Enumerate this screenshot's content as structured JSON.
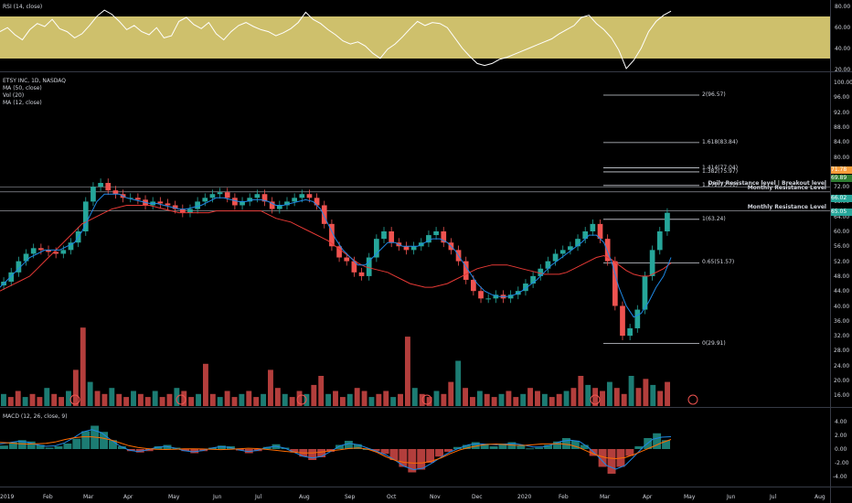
{
  "rsi": {
    "title": "RSI (14, close)",
    "axis_ticks": [
      "80.00",
      "60.00",
      "40.00",
      "20.00"
    ],
    "band_color": "#f2e27f",
    "line_color": "#ffffff"
  },
  "price": {
    "legend": [
      "ETSY INC, 1D, NASDAQ",
      "MA (50, close)",
      "Vol (20)",
      "MA (12, close)"
    ],
    "axis_ticks": [
      "100.00",
      "96.00",
      "92.00",
      "88.00",
      "84.00",
      "80.00",
      "76.00",
      "72.00",
      "68.00",
      "64.00",
      "60.00",
      "56.00",
      "52.00",
      "48.00",
      "44.00",
      "40.00",
      "36.00",
      "32.00",
      "28.00",
      "24.00",
      "20.00",
      "16.00"
    ],
    "fib_levels": [
      {
        "label": "2(96.57)",
        "price": 96.57
      },
      {
        "label": "1.618(83.84)",
        "price": 83.84
      },
      {
        "label": "1.414(77.04)",
        "price": 77.04
      },
      {
        "label": "1.382(75.97)",
        "price": 75.97
      },
      {
        "label": "1.272(72.31)",
        "price": 72.31
      },
      {
        "label": "1(63.24)",
        "price": 63.24
      },
      {
        "label": "0.65(51.57)",
        "price": 51.57
      },
      {
        "label": "0(29.91)",
        "price": 29.91
      }
    ],
    "resistance_lines": [
      {
        "label": "Daily Resistance level | Breakout level",
        "price": 71.9
      },
      {
        "label": "Monthly Resistance Level",
        "price": 70.6
      },
      {
        "label": "Monthly Resistance Level",
        "price": 65.5
      }
    ],
    "price_badges": [
      {
        "text": "71.78",
        "color": "#f89c3a"
      },
      {
        "text": "69.89",
        "color": "#2e7d32"
      },
      {
        "text": "66.02",
        "color": "#26a69a"
      },
      {
        "text": "65.05",
        "color": "#26a69a"
      }
    ],
    "up_color": "#26a69a",
    "down_color": "#ef5350",
    "ma50_color": "#e53935",
    "ma12_color": "#1e88e5"
  },
  "macd": {
    "title": "MACD (12, 26, close, 9)",
    "axis_ticks": [
      "4.00",
      "2.00",
      "0.00",
      "-2.00",
      "-4.00"
    ]
  },
  "time_axis": [
    "2019",
    "Feb",
    "Mar",
    "Apr",
    "May",
    "Jun",
    "Jul",
    "Aug",
    "Sep",
    "Oct",
    "Nov",
    "Dec",
    "2020",
    "Feb",
    "Mar",
    "Apr",
    "May",
    "Jun",
    "Jul",
    "Aug"
  ],
  "chart_data": [
    {
      "type": "line",
      "title": "RSI (14, close)",
      "ylim": [
        17,
        84
      ],
      "series": [
        {
          "values": [
            58,
            62,
            55,
            50,
            60,
            66,
            63,
            70,
            61,
            58,
            52,
            56,
            64,
            73,
            79,
            75,
            68,
            60,
            64,
            58,
            55,
            62,
            52,
            54,
            68,
            72,
            65,
            61,
            67,
            56,
            50,
            58,
            64,
            67,
            63,
            60,
            58,
            54,
            57,
            61,
            67,
            77,
            70,
            66,
            60,
            55,
            49,
            46,
            48,
            44,
            37,
            32,
            41,
            46,
            53,
            61,
            68,
            64,
            67,
            66,
            62,
            52,
            42,
            34,
            27,
            25,
            27,
            31,
            33,
            36,
            39,
            42,
            45,
            48,
            51,
            56,
            60,
            64,
            72,
            74,
            66,
            60,
            52,
            40,
            22,
            30,
            42,
            58,
            68,
            74,
            78
          ]
        }
      ]
    },
    {
      "type": "line",
      "title": "ETSY INC, 1D, NASDAQ",
      "ylim": [
        14,
        101
      ],
      "series": [
        {
          "name": "ETSY INC, 1D, NASDAQ",
          "values": [
            46.5,
            49,
            52,
            54,
            55.5,
            55,
            54.5,
            54,
            55,
            57,
            60,
            68,
            72,
            73,
            71,
            70,
            69,
            69,
            68.5,
            67,
            68,
            67.5,
            67,
            66,
            65,
            66,
            68,
            69,
            70,
            70.5,
            69,
            67,
            68,
            69,
            70,
            68,
            66,
            67,
            68,
            69,
            70,
            69,
            67,
            62,
            56,
            53,
            52,
            49,
            48,
            53,
            58,
            60,
            57,
            56,
            55,
            56,
            57,
            59,
            60,
            57,
            55,
            52,
            47,
            44,
            42,
            42,
            43,
            42,
            43,
            44,
            46,
            48,
            50,
            52,
            54,
            55,
            56,
            58,
            60,
            62,
            58,
            52,
            40,
            32,
            34,
            39,
            48,
            55,
            60,
            65
          ]
        },
        {
          "name": "MA (50, close)",
          "values": [
            44,
            45,
            46,
            47,
            48,
            50,
            52,
            54,
            56,
            58,
            60,
            62,
            63,
            64,
            65,
            66,
            66.5,
            67,
            67,
            67,
            67,
            66.5,
            66,
            65.5,
            65,
            65,
            65,
            65,
            65,
            65.5,
            65.5,
            65.5,
            65.5,
            65.5,
            65.5,
            65.5,
            64.5,
            63.5,
            63,
            62.5,
            61.5,
            60.5,
            59.5,
            58.5,
            57.5,
            56,
            54.5,
            53,
            51.5,
            50.5,
            50,
            49.5,
            49,
            48,
            47,
            46,
            45.5,
            45,
            45,
            45.5,
            46,
            47,
            48,
            49,
            50,
            50.5,
            51,
            51,
            51,
            50.5,
            50,
            49.5,
            49,
            48.5,
            48.5,
            48.5,
            49,
            50,
            51,
            52,
            53,
            53.5,
            52.5,
            51,
            49.5,
            48.5,
            48,
            48,
            49,
            50,
            51.5
          ]
        },
        {
          "name": "MA (12, close)",
          "values": [
            45,
            47,
            49,
            51,
            53,
            54,
            55,
            55,
            55,
            56,
            57,
            60,
            64,
            68,
            70,
            70,
            70,
            69,
            68.5,
            68,
            67.5,
            67.5,
            67,
            66.5,
            66,
            66,
            66.5,
            67,
            68,
            69,
            69,
            68.5,
            68,
            68,
            68.5,
            68.5,
            68,
            67,
            67,
            67.5,
            68,
            68.5,
            68,
            66,
            62,
            58,
            55,
            53,
            51,
            51,
            53,
            55,
            57,
            57,
            56,
            56,
            56,
            57,
            58,
            58,
            57,
            55,
            52,
            49,
            46,
            44,
            43,
            42.5,
            42.5,
            43,
            44,
            45.5,
            47,
            49,
            51,
            52.5,
            54,
            55.5,
            57,
            59,
            59,
            57,
            52,
            45,
            40,
            37,
            38,
            41,
            45,
            48,
            53
          ]
        }
      ]
    },
    {
      "type": "bar",
      "title": "Vol (20)",
      "values": [
        4,
        3,
        5,
        3,
        4,
        3,
        6,
        4,
        3,
        5,
        12,
        26,
        8,
        5,
        4,
        6,
        4,
        3,
        5,
        4,
        3,
        5,
        3,
        4,
        6,
        5,
        3,
        4,
        14,
        4,
        3,
        5,
        3,
        4,
        5,
        3,
        4,
        12,
        6,
        4,
        3,
        5,
        4,
        7,
        10,
        4,
        5,
        3,
        4,
        6,
        5,
        3,
        4,
        5,
        3,
        4,
        23,
        6,
        4,
        3,
        5,
        4,
        8,
        15,
        6,
        3,
        5,
        4,
        3,
        4,
        5,
        3,
        4,
        6,
        5,
        4,
        3,
        4,
        5,
        6,
        10,
        7,
        6,
        5,
        8,
        6,
        4,
        10,
        6,
        9,
        7,
        5,
        8
      ]
    },
    {
      "type": "bar",
      "title": "MACD (12, 26, close, 9)",
      "ylim": [
        -5.3,
        5.3
      ],
      "values": [
        0.5,
        1.0,
        1.3,
        1.1,
        0.6,
        0.2,
        0.4,
        0.8,
        1.5,
        2.6,
        3.4,
        2.5,
        1.3,
        0.4,
        -0.3,
        -0.5,
        -0.3,
        0.4,
        0.6,
        0.2,
        -0.3,
        -0.6,
        -0.3,
        0.2,
        0.5,
        0.4,
        -0.2,
        -0.6,
        -0.3,
        0.3,
        0.7,
        0.2,
        -0.5,
        -1.1,
        -1.6,
        -1.2,
        -0.4,
        0.6,
        1.2,
        0.7,
        0.0,
        -0.3,
        -0.7,
        -1.6,
        -2.6,
        -3.4,
        -3.0,
        -2.0,
        -1.1,
        -0.4,
        0.3,
        0.6,
        1.0,
        0.7,
        0.4,
        0.8,
        1.0,
        0.6,
        0.1,
        0.2,
        0.6,
        1.1,
        1.6,
        1.2,
        0.6,
        -1.0,
        -2.6,
        -3.6,
        -2.6,
        -1.0,
        0.4,
        1.6,
        2.3,
        1.3
      ]
    }
  ]
}
